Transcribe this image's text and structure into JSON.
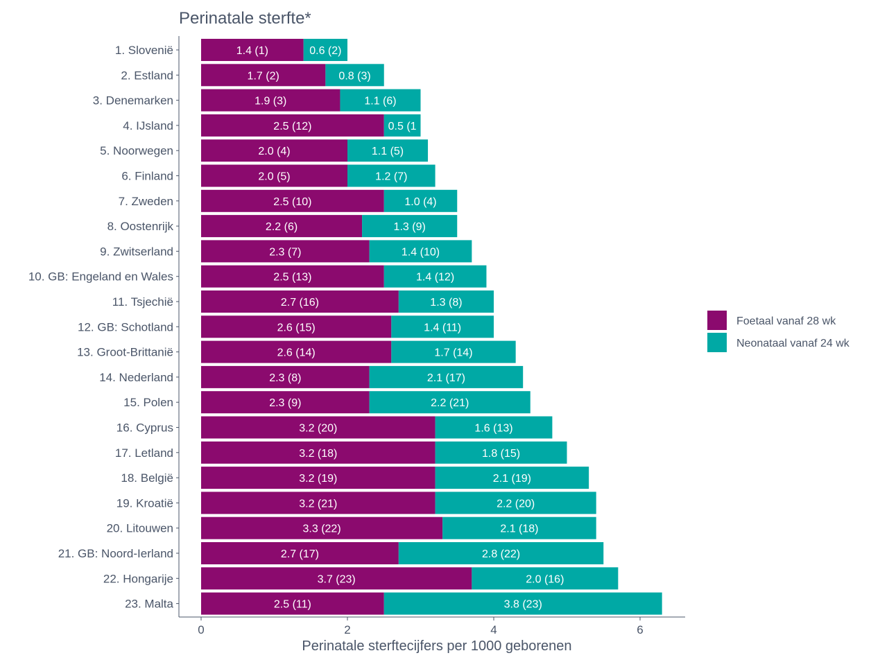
{
  "chart_data": {
    "type": "bar",
    "orientation": "horizontal",
    "stacked": true,
    "title": "Perinatale sterfte*",
    "xlabel": "Perinatale sterftecijfers per 1000 geborenen",
    "ylabel": "",
    "xlim": [
      0,
      6.5
    ],
    "xticks": [
      0,
      2,
      4,
      6
    ],
    "grid": false,
    "legend_position": "right",
    "categories": [
      "1. Slovenië",
      "2. Estland",
      "3. Denemarken",
      "4. IJsland",
      "5. Noorwegen",
      "6. Finland",
      "7. Zweden",
      "8. Oostenrijk",
      "9. Zwitserland",
      "10. GB: Engeland en Wales",
      "11. Tsjechië",
      "12. GB: Schotland",
      "13. Groot-Brittanië",
      "14. Nederland",
      "15. Polen",
      "16. Cyprus",
      "17. Letland",
      "18. België",
      "19. Kroatië",
      "20. Litouwen",
      "21. GB: Noord-Ierland",
      "22. Hongarije",
      "23. Malta"
    ],
    "series": [
      {
        "name": "Foetaal vanaf 28 wk",
        "color": "#8b0a6e",
        "values": [
          1.4,
          1.7,
          1.9,
          2.5,
          2.0,
          2.0,
          2.5,
          2.2,
          2.3,
          2.5,
          2.7,
          2.6,
          2.6,
          2.3,
          2.3,
          3.2,
          3.2,
          3.2,
          3.2,
          3.3,
          2.7,
          3.7,
          2.5
        ],
        "labels": [
          "1.4 (1)",
          "1.7 (2)",
          "1.9 (3)",
          "2.5 (12)",
          "2.0 (4)",
          "2.0 (5)",
          "2.5 (10)",
          "2.2 (6)",
          "2.3 (7)",
          "2.5 (13)",
          "2.7 (16)",
          "2.6 (15)",
          "2.6 (14)",
          "2.3 (8)",
          "2.3 (9)",
          "3.2 (20)",
          "3.2 (18)",
          "3.2 (19)",
          "3.2 (21)",
          "3.3 (22)",
          "2.7 (17)",
          "3.7 (23)",
          "2.5 (11)"
        ]
      },
      {
        "name": "Neonataal vanaf 24 wk",
        "color": "#00a9a5",
        "values": [
          0.6,
          0.8,
          1.1,
          0.5,
          1.1,
          1.2,
          1.0,
          1.3,
          1.4,
          1.4,
          1.3,
          1.4,
          1.7,
          2.1,
          2.2,
          1.6,
          1.8,
          2.1,
          2.2,
          2.1,
          2.8,
          2.0,
          3.8
        ],
        "labels": [
          "0.6 (2)",
          "0.8 (3)",
          "1.1 (6)",
          "0.5 (1",
          "1.1 (5)",
          "1.2 (7)",
          "1.0 (4)",
          "1.3 (9)",
          "1.4 (10)",
          "1.4 (12)",
          "1.3 (8)",
          "1.4 (11)",
          "1.7 (14)",
          "2.1 (17)",
          "2.2 (21)",
          "1.6 (13)",
          "1.8 (15)",
          "2.1 (19)",
          "2.2 (20)",
          "2.1 (18)",
          "2.8 (22)",
          "2.0 (16)",
          "3.8 (23)"
        ]
      }
    ]
  }
}
